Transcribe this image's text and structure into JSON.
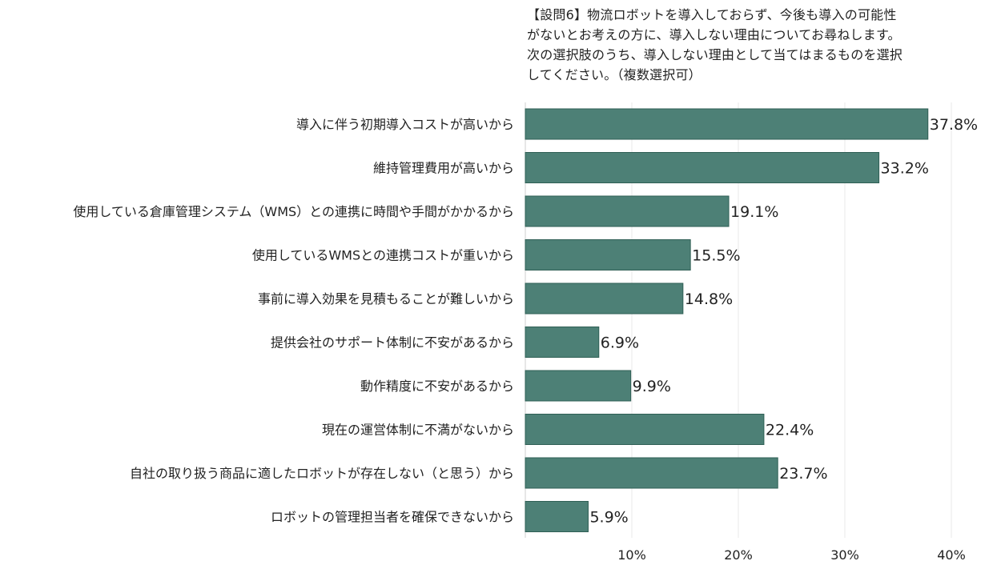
{
  "chart_data": {
    "type": "bar",
    "orientation": "horizontal",
    "title": "【設問6】物流ロボットを導入しておらず、今後も導入の可能性\nがないとお考えの方に、導入しない理由についてお尋ねします。\n次の選択肢のうち、導入しない理由として当てはまるものを選択\nしてください。（複数選択可）",
    "categories": [
      "導入に伴う初期導入コストが高いから",
      "維持管理費用が高いから",
      "使用している倉庫管理システム（WMS）との連携に時間や手間がかかるから",
      "使用しているWMSとの連携コストが重いから",
      "事前に導入効果を見積もることが難しいから",
      "提供会社のサポート体制に不安があるから",
      "動作精度に不安があるから",
      "現在の運営体制に不満がないから",
      "自社の取り扱う商品に適したロボットが存在しない（と思う）から",
      "ロボットの管理担当者を確保できないから"
    ],
    "values": [
      37.8,
      33.2,
      19.1,
      15.5,
      14.8,
      6.9,
      9.9,
      22.4,
      23.7,
      5.9
    ],
    "value_labels": [
      "37.8%",
      "33.2%",
      "19.1%",
      "15.5%",
      "14.8%",
      "6.9%",
      "9.9%",
      "22.4%",
      "23.7%",
      "5.9%"
    ],
    "xlim": [
      0,
      40
    ],
    "ticks": [
      10,
      20,
      30,
      40
    ],
    "tick_labels": [
      "10%",
      "20%",
      "30%",
      "40%"
    ],
    "grid": true,
    "bar_color": "#4d8076",
    "bar_edge_color": "#2f5f55",
    "grid_color": "#e8e8e8"
  }
}
